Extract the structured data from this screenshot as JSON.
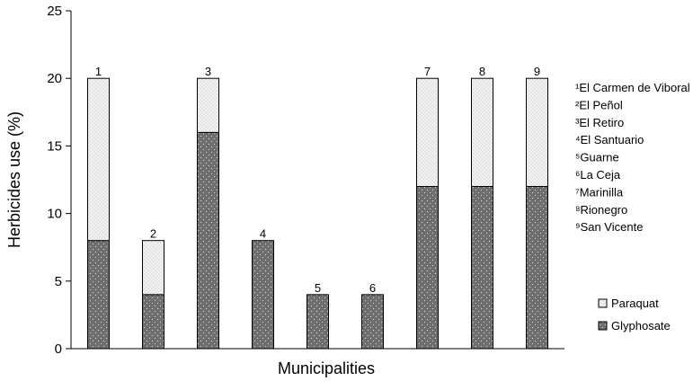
{
  "chart_data": {
    "type": "bar",
    "stacked": true,
    "xlabel": "Municipalities",
    "ylabel": "Herbicides use (%)",
    "ylim": [
      0,
      25
    ],
    "yticks": [
      0,
      5,
      10,
      15,
      20,
      25
    ],
    "grid": false,
    "categories": [
      "1",
      "2",
      "3",
      "4",
      "5",
      "6",
      "7",
      "8",
      "9"
    ],
    "series": [
      {
        "name": "Glyphosate",
        "values": [
          8,
          4,
          16,
          8,
          4,
          4,
          12,
          12,
          12
        ]
      },
      {
        "name": "Paraquat",
        "values": [
          12,
          4,
          4,
          0,
          0,
          0,
          8,
          8,
          8
        ]
      }
    ],
    "municipality_legend": [
      "¹El Carmen de Viboral",
      "²El Peñol",
      "³El Retiro",
      "⁴El Santuario",
      "⁵Guarne",
      "⁶La Ceja",
      "⁷Marinilla",
      "⁸Rionegro",
      "⁹San Vicente"
    ],
    "series_legend_placement": "bottom-right",
    "colors": {
      "glyphosate": "#6e6e6e",
      "paraquat": "#f2f2f2",
      "outline": "#000000"
    }
  }
}
